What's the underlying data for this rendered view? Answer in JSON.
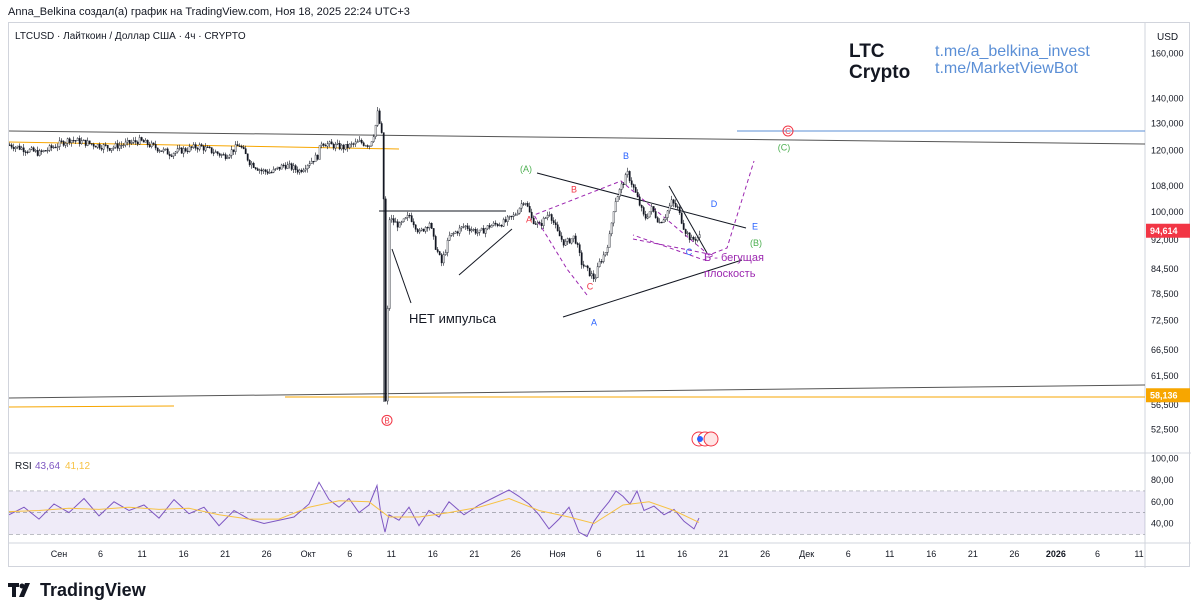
{
  "header": {
    "caption": "Anna_Belkina создал(а) график на TradingView.com, Ноя 18, 2025 22:24 UTC+3"
  },
  "footer": {
    "brand": "TradingView",
    "logo_icon": "tradingview-logo-icon"
  },
  "chart_data": [
    {
      "type": "line",
      "subtype": "candlestick",
      "symbol_line": "LTCUSD · Лайткоин / Доллар США · 4ч · CRYPTO",
      "currency": "USD",
      "scale": "log",
      "title": "",
      "xlabel": "",
      "ylabel": "",
      "ylim": [
        49000,
        175000
      ],
      "y_ticks": [
        52500,
        56500,
        61500,
        66500,
        72500,
        78500,
        84500,
        92000,
        100000,
        108000,
        120000,
        130000,
        140000,
        160000
      ],
      "y_tick_labels": [
        "52,500",
        "56,500",
        "61,500",
        "66,500",
        "72,500",
        "78,500",
        "84,500",
        "92,000",
        "100,000",
        "108,000",
        "120,000",
        "130,000",
        "140,000",
        "160,000"
      ],
      "x_tick_labels": [
        "Сен",
        "6",
        "11",
        "16",
        "21",
        "26",
        "Окт",
        "6",
        "11",
        "16",
        "21",
        "26",
        "Ноя",
        "6",
        "11",
        "16",
        "21",
        "26",
        "Дек",
        "6",
        "11",
        "16",
        "21",
        "26",
        "2026",
        "6",
        "11"
      ],
      "x_tick_bold": [
        "2026"
      ],
      "price_labels": [
        {
          "value": 94614,
          "text": "94,614",
          "color": "#f23645"
        },
        {
          "value": 58136,
          "text": "58,136",
          "color": "#f7a600"
        }
      ],
      "watermark": {
        "line1": "LTC",
        "line2": "Crypto",
        "link1": "t.me/a_belkina_invest",
        "link2": "t.me/MarketViewBot",
        "link_color": "#5b8fd6"
      },
      "series": [
        {
          "price_path": [
            [
              0,
              122000
            ],
            [
              30,
              119000
            ],
            [
              60,
              124000
            ],
            [
              100,
              121000
            ],
            [
              130,
              123500
            ],
            [
              160,
              119000
            ],
            [
              190,
              121500
            ],
            [
              215,
              118000
            ],
            [
              230,
              122000
            ],
            [
              240,
              116000
            ],
            [
              252,
              113000
            ],
            [
              262,
              112500
            ],
            [
              275,
              115000
            ],
            [
              290,
              113000
            ],
            [
              300,
              116000
            ],
            [
              308,
              118000
            ],
            [
              312,
              123000
            ],
            [
              320,
              122000
            ],
            [
              335,
              121000
            ],
            [
              350,
              123000
            ],
            [
              360,
              122000
            ],
            [
              365,
              127000
            ],
            [
              368,
              134000
            ],
            [
              371,
              128000
            ],
            [
              373,
              123000
            ],
            [
              374,
              104000
            ],
            [
              376,
              57000
            ],
            [
              380,
              98000
            ],
            [
              390,
              96000
            ],
            [
              400,
              99000
            ],
            [
              410,
              94000
            ],
            [
              420,
              97000
            ],
            [
              425,
              91000
            ],
            [
              432,
              86000
            ],
            [
              440,
              93000
            ],
            [
              455,
              96000
            ],
            [
              470,
              94000
            ],
            [
              480,
              96000
            ],
            [
              495,
              97000
            ],
            [
              505,
              99000
            ],
            [
              515,
              104000
            ],
            [
              522,
              98000
            ],
            [
              530,
              96000
            ],
            [
              540,
              100000
            ],
            [
              548,
              94000
            ],
            [
              555,
              91000
            ],
            [
              565,
              93000
            ],
            [
              572,
              86000
            ],
            [
              578,
              84000
            ],
            [
              585,
              82000
            ],
            [
              590,
              86000
            ],
            [
              596,
              89000
            ],
            [
              600,
              93000
            ],
            [
              605,
              103000
            ],
            [
              612,
              108000
            ],
            [
              618,
              112000
            ],
            [
              622,
              109000
            ],
            [
              628,
              104000
            ],
            [
              635,
              98000
            ],
            [
              642,
              101000
            ],
            [
              650,
              97000
            ],
            [
              656,
              99000
            ],
            [
              662,
              103000
            ],
            [
              668,
              101000
            ],
            [
              675,
              95000
            ],
            [
              682,
              92000
            ],
            [
              690,
              93000
            ]
          ]
        }
      ],
      "annotations": [
        {
          "kind": "text",
          "text": "НЕТ импульса",
          "x": 400,
          "price": 72000,
          "color": "#131722"
        },
        {
          "kind": "text",
          "text": "Б - бегущая",
          "x": 695,
          "price": 86500,
          "color": "#9c27b0"
        },
        {
          "kind": "text",
          "text": "плоскость",
          "x": 695,
          "price": 82500,
          "color": "#9c27b0"
        },
        {
          "kind": "wave",
          "text": "(A)",
          "x": 517,
          "price": 112500,
          "color": "#4caf50"
        },
        {
          "kind": "wave",
          "text": "A",
          "x": 520,
          "price": 97000,
          "color": "#f23645"
        },
        {
          "kind": "wave",
          "text": "B",
          "x": 565,
          "price": 106000,
          "color": "#f23645"
        },
        {
          "kind": "wave",
          "text": "C",
          "x": 581,
          "price": 79500,
          "color": "#f23645"
        },
        {
          "kind": "wave",
          "text": "A",
          "x": 585,
          "price": 71500,
          "color": "#2962ff"
        },
        {
          "kind": "wave",
          "text": "B",
          "x": 617,
          "price": 117000,
          "color": "#2962ff"
        },
        {
          "kind": "wave",
          "text": "C",
          "x": 680,
          "price": 88000,
          "color": "#2962ff"
        },
        {
          "kind": "wave",
          "text": "D",
          "x": 705,
          "price": 101500,
          "color": "#2962ff"
        },
        {
          "kind": "wave",
          "text": "E",
          "x": 746,
          "price": 95000,
          "color": "#2962ff"
        },
        {
          "kind": "wave",
          "text": "(B)",
          "x": 747,
          "price": 90500,
          "color": "#4caf50"
        },
        {
          "kind": "wave",
          "text": "(C)",
          "x": 775,
          "price": 120000,
          "color": "#4caf50"
        },
        {
          "kind": "wave-circle",
          "text": "C",
          "x": 779,
          "price": 126000,
          "color": "#f23645"
        },
        {
          "kind": "wave-circle",
          "text": "B",
          "x": 378,
          "price": 53500,
          "color": "#f23645"
        }
      ]
    },
    {
      "type": "line",
      "indicator_label": "RSI",
      "indicator_value1": "43,64",
      "indicator_value2": "41,12",
      "ylim": [
        22,
        105
      ],
      "y_ticks": [
        40,
        60,
        80,
        100
      ],
      "y_tick_labels": [
        "40,00",
        "60,00",
        "80,00",
        "100,00"
      ],
      "band": [
        30,
        70
      ],
      "series": [
        {
          "color": "#7e57c2",
          "x": [
            0,
            15,
            30,
            45,
            60,
            75,
            90,
            105,
            120,
            135,
            150,
            165,
            180,
            195,
            210,
            225,
            240,
            255,
            270,
            285,
            300,
            310,
            320,
            330,
            340,
            350,
            360,
            368,
            372,
            376,
            380,
            390,
            400,
            410,
            420,
            430,
            440,
            455,
            470,
            485,
            500,
            510,
            520,
            530,
            540,
            550,
            560,
            570,
            578,
            585,
            592,
            600,
            607,
            614,
            621,
            628,
            635,
            645,
            655,
            665,
            675,
            685,
            690
          ],
          "values": [
            48,
            55,
            44,
            58,
            50,
            63,
            47,
            60,
            52,
            57,
            45,
            62,
            49,
            55,
            38,
            52,
            44,
            40,
            43,
            46,
            58,
            78,
            62,
            55,
            63,
            50,
            57,
            75,
            48,
            32,
            48,
            43,
            55,
            38,
            52,
            46,
            60,
            48,
            57,
            64,
            71,
            65,
            58,
            48,
            35,
            44,
            55,
            32,
            28,
            42,
            51,
            60,
            70,
            65,
            58,
            70,
            52,
            56,
            48,
            53,
            42,
            35,
            45
          ]
        },
        {
          "color": "#f7c243",
          "x": [
            0,
            30,
            60,
            90,
            120,
            150,
            180,
            210,
            240,
            270,
            300,
            330,
            360,
            380,
            410,
            440,
            470,
            500,
            530,
            560,
            585,
            614,
            640,
            665,
            690
          ],
          "values": [
            51,
            52,
            54,
            53,
            55,
            53,
            54,
            48,
            44,
            44,
            55,
            61,
            60,
            46,
            46,
            50,
            55,
            63,
            52,
            46,
            40,
            57,
            60,
            52,
            41
          ]
        }
      ]
    }
  ]
}
